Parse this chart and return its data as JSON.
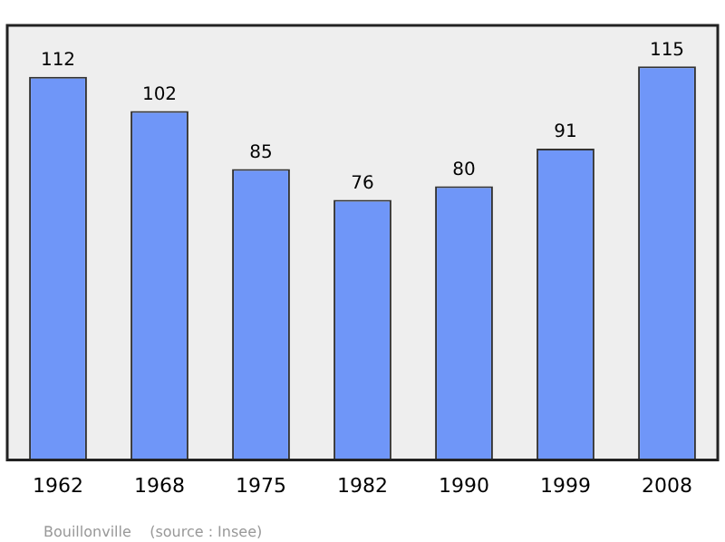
{
  "chart_data": {
    "type": "bar",
    "categories": [
      "1962",
      "1968",
      "1975",
      "1982",
      "1990",
      "1999",
      "2008"
    ],
    "values": [
      112,
      102,
      85,
      76,
      80,
      91,
      115
    ],
    "color": "#6f96f8",
    "ylim": [
      0,
      127
    ],
    "data_labels": true,
    "legend": false,
    "tick_labels": "x",
    "annotations": [
      "Bouillonville    (source : Insee)"
    ]
  }
}
